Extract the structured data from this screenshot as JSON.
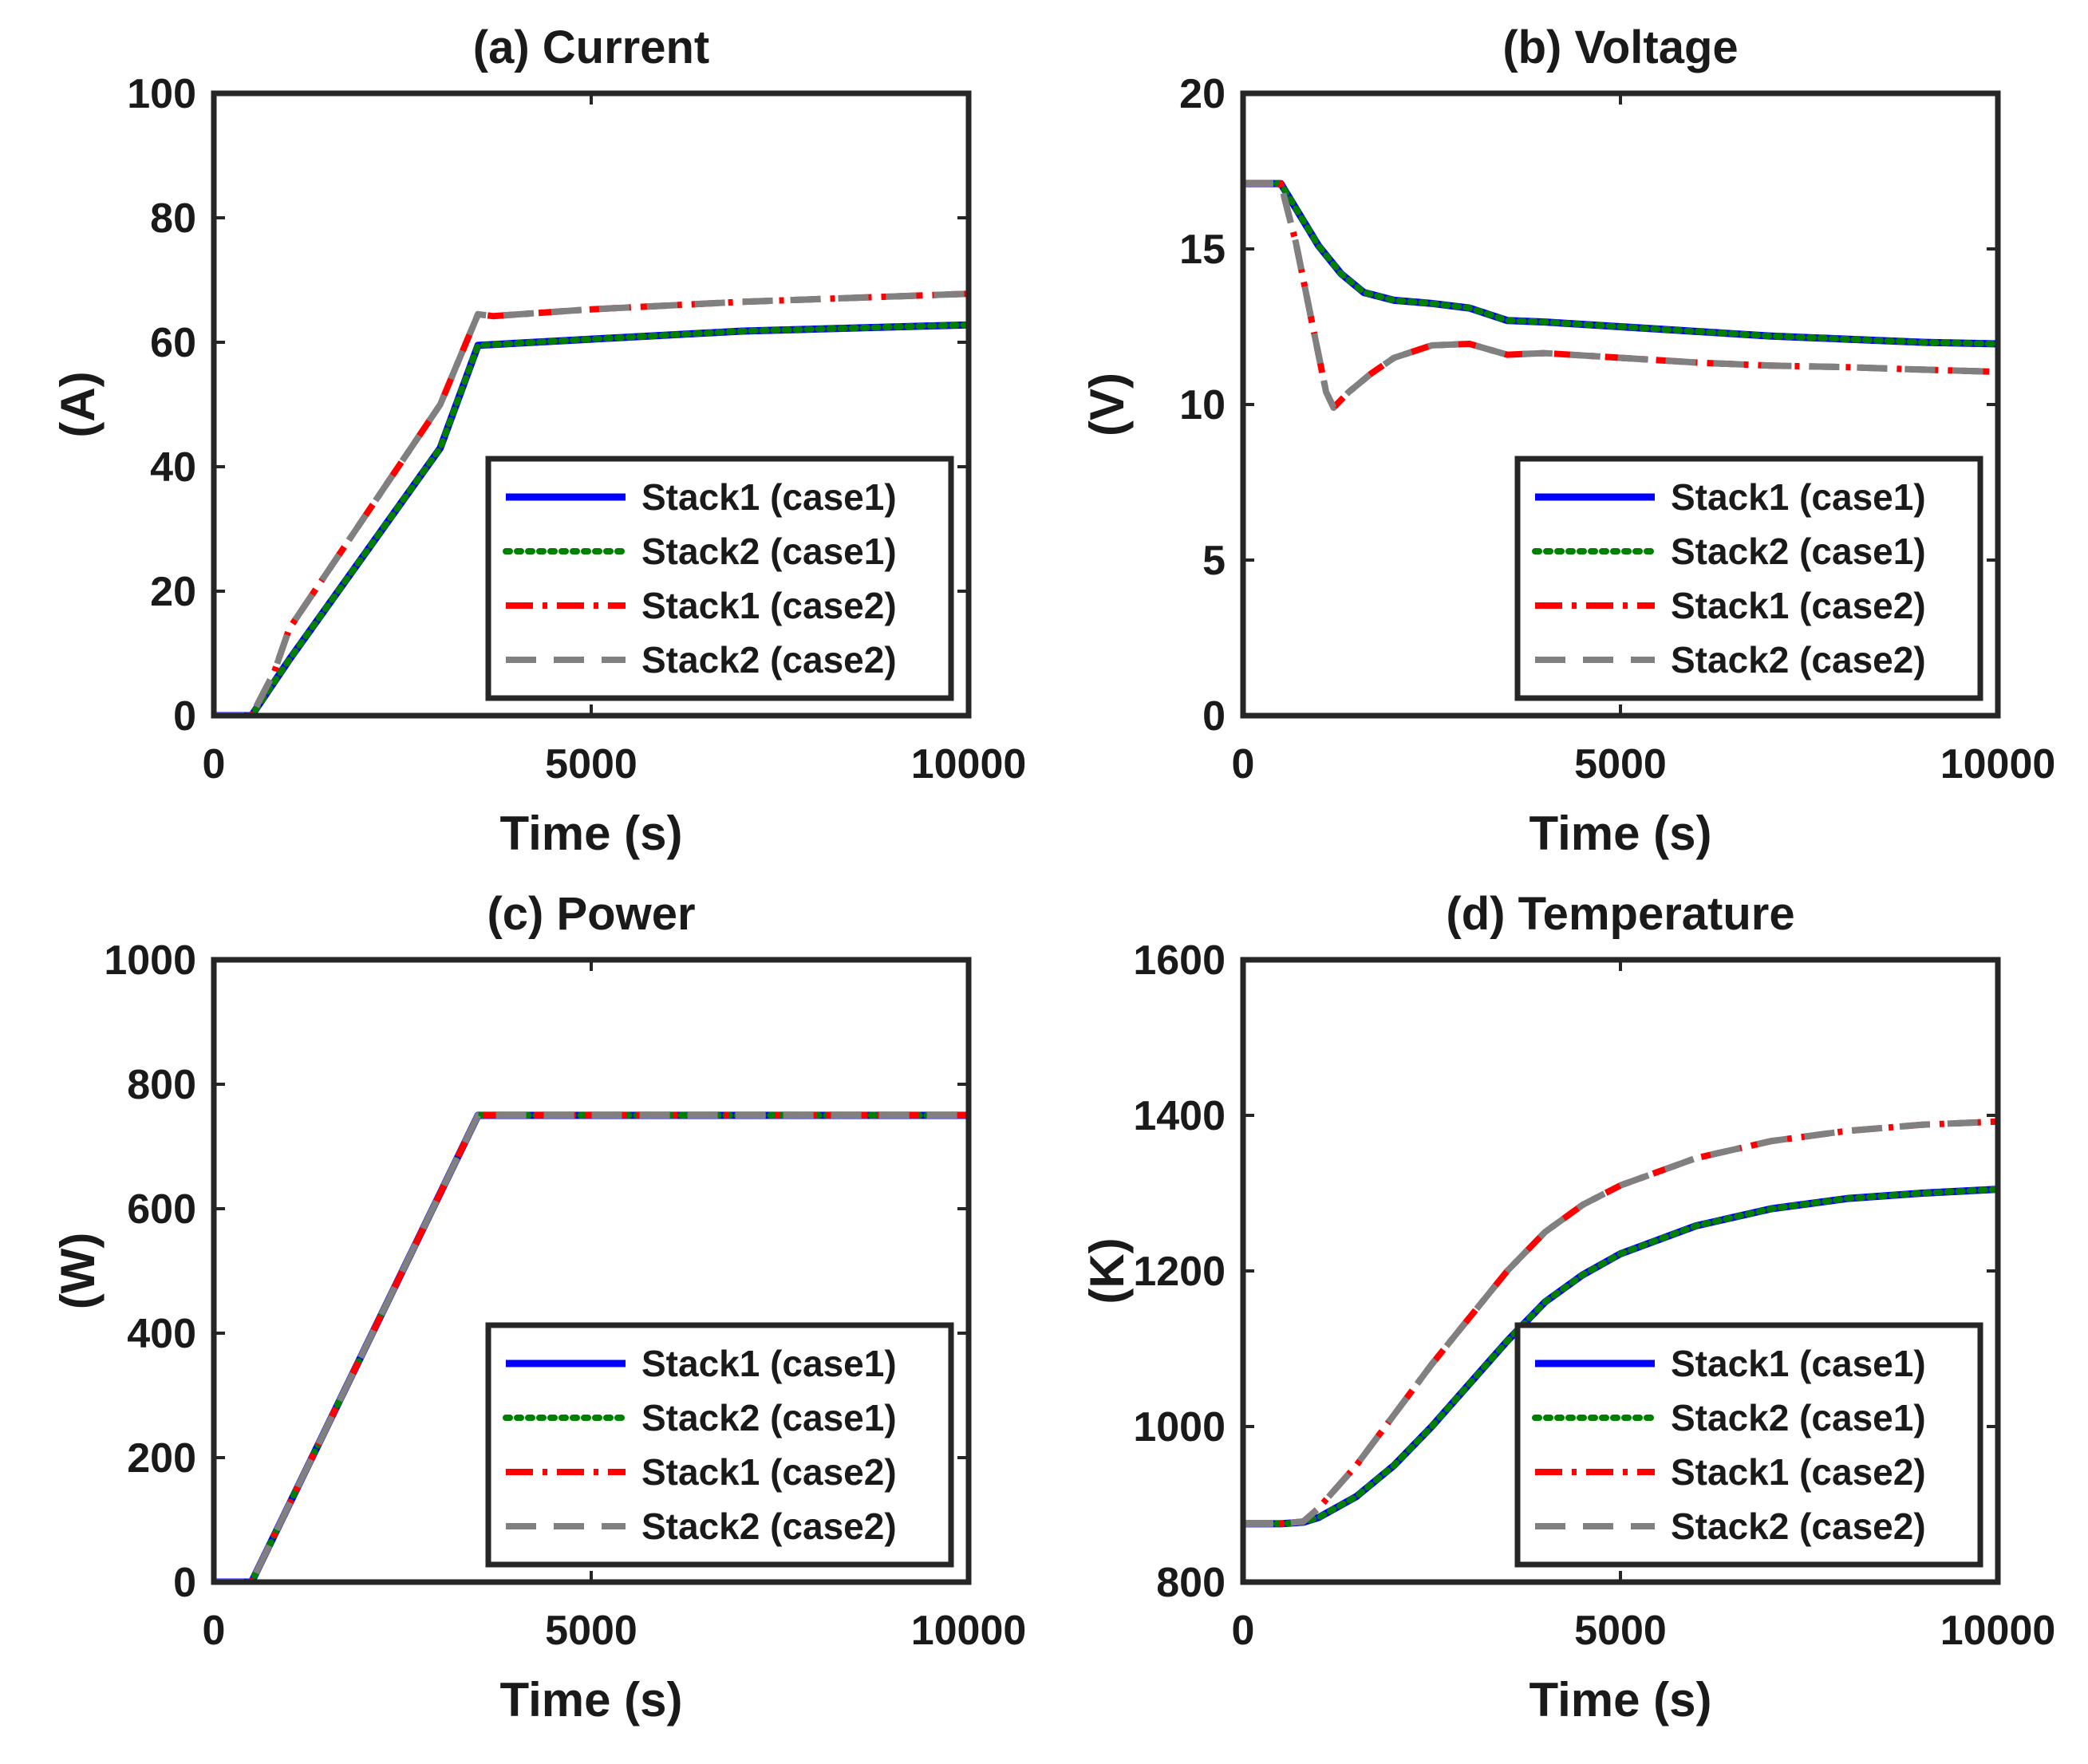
{
  "chart_data": [
    {
      "type": "line",
      "title": "(a) Current",
      "xlabel": "Time (s)",
      "ylabel": "(A)",
      "xlim": [
        0,
        10000
      ],
      "ylim": [
        0,
        100
      ],
      "xticks": [
        0,
        5000,
        10000
      ],
      "yticks": [
        0,
        20,
        40,
        60,
        80,
        100
      ],
      "legend_position": "bottom-right",
      "series": [
        {
          "name": "Stack1 (case1)",
          "color": "#0000ff",
          "style": "solid",
          "x": [
            0,
            500,
            1000,
            2000,
            3000,
            3500,
            5000,
            7000,
            10000
          ],
          "y": [
            0,
            0,
            9,
            26,
            43,
            59.5,
            60.5,
            61.8,
            62.8
          ]
        },
        {
          "name": "Stack2 (case1)",
          "color": "#008000",
          "style": "dotted",
          "x": [
            0,
            500,
            1000,
            2000,
            3000,
            3500,
            5000,
            7000,
            10000
          ],
          "y": [
            0,
            0,
            9,
            26,
            43,
            59.5,
            60.5,
            61.8,
            62.8
          ]
        },
        {
          "name": "Stack1 (case2)",
          "color": "#ff0000",
          "style": "dashdot",
          "x": [
            0,
            500,
            800,
            1000,
            1500,
            2000,
            3000,
            3500,
            3700,
            5000,
            7000,
            10000
          ],
          "y": [
            0,
            0,
            7,
            14,
            23,
            32,
            50,
            64.5,
            64.2,
            65.3,
            66.5,
            67.8
          ]
        },
        {
          "name": "Stack2 (case2)",
          "color": "#808080",
          "style": "dashed",
          "x": [
            0,
            500,
            800,
            1000,
            1500,
            2000,
            3000,
            3500,
            3700,
            5000,
            7000,
            10000
          ],
          "y": [
            0,
            0,
            7,
            14,
            23,
            32,
            50,
            64.5,
            64.2,
            65.3,
            66.5,
            67.8
          ]
        }
      ]
    },
    {
      "type": "line",
      "title": "(b) Voltage",
      "xlabel": "Time (s)",
      "ylabel": "(V)",
      "xlim": [
        0,
        10000
      ],
      "ylim": [
        0,
        20
      ],
      "xticks": [
        0,
        5000,
        10000
      ],
      "yticks": [
        0,
        5,
        10,
        15,
        20
      ],
      "legend_position": "bottom-right",
      "series": [
        {
          "name": "Stack1 (case1)",
          "color": "#0000ff",
          "style": "solid",
          "x": [
            0,
            500,
            700,
            1000,
            1300,
            1600,
            2000,
            2500,
            3000,
            3500,
            4000,
            5000,
            6000,
            7000,
            8000,
            9000,
            10000
          ],
          "y": [
            17.1,
            17.1,
            16.3,
            15.1,
            14.2,
            13.6,
            13.35,
            13.25,
            13.1,
            12.7,
            12.65,
            12.5,
            12.35,
            12.2,
            12.1,
            12.0,
            11.95
          ]
        },
        {
          "name": "Stack2 (case1)",
          "color": "#008000",
          "style": "dotted",
          "x": [
            0,
            500,
            700,
            1000,
            1300,
            1600,
            2000,
            2500,
            3000,
            3500,
            4000,
            5000,
            6000,
            7000,
            8000,
            9000,
            10000
          ],
          "y": [
            17.1,
            17.1,
            16.3,
            15.1,
            14.2,
            13.6,
            13.35,
            13.25,
            13.1,
            12.7,
            12.65,
            12.5,
            12.35,
            12.2,
            12.1,
            12.0,
            11.95
          ]
        },
        {
          "name": "Stack1 (case2)",
          "color": "#ff0000",
          "style": "dashdot",
          "x": [
            0,
            500,
            700,
            900,
            1100,
            1200,
            1400,
            1700,
            2000,
            2500,
            3000,
            3500,
            4000,
            5000,
            6000,
            7000,
            8000,
            9000,
            10000
          ],
          "y": [
            17.1,
            17.1,
            15.2,
            12.8,
            10.4,
            9.9,
            10.4,
            11.0,
            11.5,
            11.9,
            11.95,
            11.6,
            11.65,
            11.5,
            11.35,
            11.25,
            11.2,
            11.12,
            11.05
          ]
        },
        {
          "name": "Stack2 (case2)",
          "color": "#808080",
          "style": "dashed",
          "x": [
            0,
            500,
            700,
            900,
            1100,
            1200,
            1400,
            1700,
            2000,
            2500,
            3000,
            3500,
            4000,
            5000,
            6000,
            7000,
            8000,
            9000,
            10000
          ],
          "y": [
            17.1,
            17.1,
            15.2,
            12.8,
            10.4,
            9.9,
            10.4,
            11.0,
            11.5,
            11.9,
            11.95,
            11.6,
            11.65,
            11.5,
            11.35,
            11.25,
            11.2,
            11.12,
            11.05
          ]
        }
      ]
    },
    {
      "type": "line",
      "title": "(c) Power",
      "xlabel": "Time (s)",
      "ylabel": "(W)",
      "xlim": [
        0,
        10000
      ],
      "ylim": [
        0,
        1000
      ],
      "xticks": [
        0,
        5000,
        10000
      ],
      "yticks": [
        0,
        200,
        400,
        600,
        800,
        1000
      ],
      "legend_position": "bottom-right",
      "series": [
        {
          "name": "Stack1 (case1)",
          "color": "#0000ff",
          "style": "solid",
          "x": [
            0,
            500,
            3500,
            10000
          ],
          "y": [
            0,
            0,
            750,
            750
          ]
        },
        {
          "name": "Stack2 (case1)",
          "color": "#008000",
          "style": "dotted",
          "x": [
            0,
            500,
            3500,
            10000
          ],
          "y": [
            0,
            0,
            750,
            750
          ]
        },
        {
          "name": "Stack1 (case2)",
          "color": "#ff0000",
          "style": "dashdot",
          "x": [
            0,
            500,
            3500,
            10000
          ],
          "y": [
            0,
            0,
            750,
            750
          ]
        },
        {
          "name": "Stack2 (case2)",
          "color": "#808080",
          "style": "dashed",
          "x": [
            0,
            500,
            3500,
            10000
          ],
          "y": [
            0,
            0,
            750,
            750
          ]
        }
      ]
    },
    {
      "type": "line",
      "title": "(d) Temperature",
      "xlabel": "Time (s)",
      "ylabel": "(K)",
      "xlim": [
        0,
        10000
      ],
      "ylim": [
        800,
        1600
      ],
      "xticks": [
        0,
        5000,
        10000
      ],
      "yticks": [
        800,
        1000,
        1200,
        1400,
        1600
      ],
      "legend_position": "bottom-right",
      "series": [
        {
          "name": "Stack1 (case1)",
          "color": "#0000ff",
          "style": "solid",
          "x": [
            0,
            500,
            800,
            1000,
            1500,
            2000,
            2500,
            3000,
            3500,
            4000,
            4500,
            5000,
            6000,
            7000,
            8000,
            9000,
            10000
          ],
          "y": [
            875,
            875,
            877,
            883,
            910,
            950,
            1000,
            1055,
            1110,
            1160,
            1195,
            1222,
            1258,
            1280,
            1293,
            1300,
            1305
          ]
        },
        {
          "name": "Stack2 (case1)",
          "color": "#008000",
          "style": "dotted",
          "x": [
            0,
            500,
            800,
            1000,
            1500,
            2000,
            2500,
            3000,
            3500,
            4000,
            4500,
            5000,
            6000,
            7000,
            8000,
            9000,
            10000
          ],
          "y": [
            875,
            875,
            877,
            883,
            910,
            950,
            1000,
            1055,
            1110,
            1160,
            1195,
            1222,
            1258,
            1280,
            1293,
            1300,
            1305
          ]
        },
        {
          "name": "Stack1 (case2)",
          "color": "#ff0000",
          "style": "dashdot",
          "x": [
            0,
            500,
            800,
            1000,
            1500,
            2000,
            2500,
            3000,
            3500,
            4000,
            4500,
            5000,
            6000,
            7000,
            8000,
            9000,
            10000
          ],
          "y": [
            875,
            875,
            878,
            895,
            950,
            1015,
            1080,
            1140,
            1200,
            1250,
            1285,
            1310,
            1345,
            1367,
            1380,
            1388,
            1392
          ]
        },
        {
          "name": "Stack2 (case2)",
          "color": "#808080",
          "style": "dashed",
          "x": [
            0,
            500,
            800,
            1000,
            1500,
            2000,
            2500,
            3000,
            3500,
            4000,
            4500,
            5000,
            6000,
            7000,
            8000,
            9000,
            10000
          ],
          "y": [
            875,
            875,
            878,
            895,
            950,
            1015,
            1080,
            1140,
            1200,
            1250,
            1285,
            1310,
            1345,
            1367,
            1380,
            1388,
            1392
          ]
        }
      ]
    }
  ]
}
